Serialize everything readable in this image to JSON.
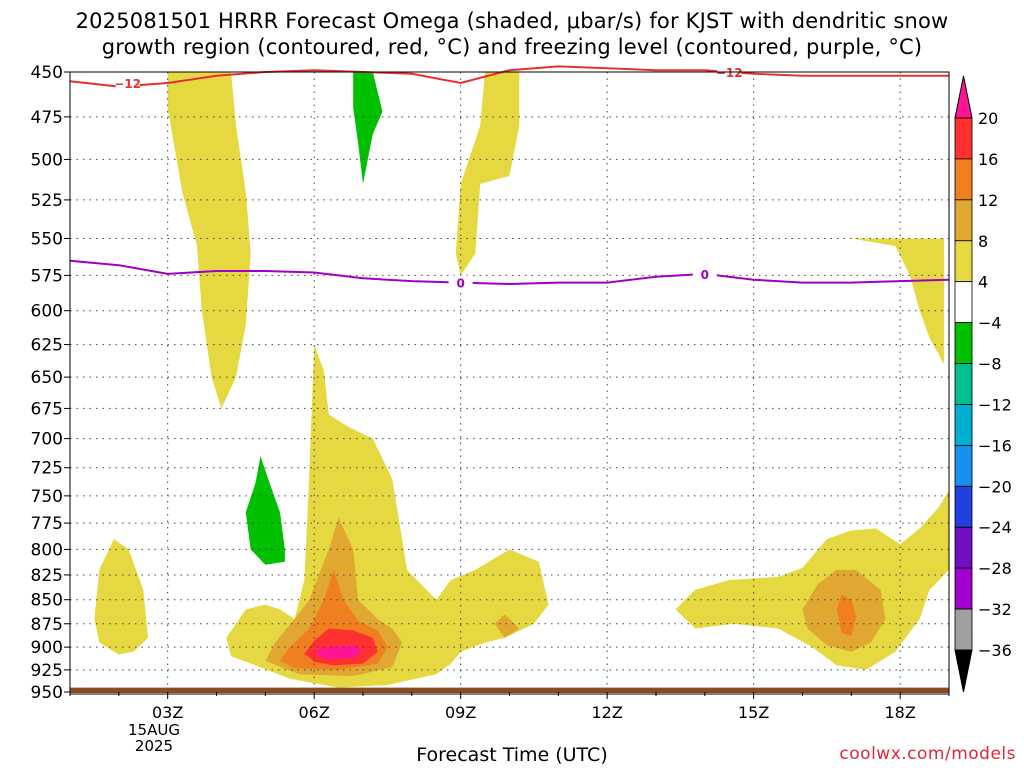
{
  "title_line1": "2025081501 HRRR Forecast Omega (shaded, μbar/s) for KJST with dendritic snow",
  "title_line2": "growth region (contoured, red, °C) and freezing level (contoured, purple, °C)",
  "credit": "coolwx.com/models",
  "chart_data": {
    "type": "heatmap",
    "xlabel": "Forecast Time (UTC)",
    "ylabel": "",
    "x_ticks": [
      "03Z",
      "06Z",
      "09Z",
      "12Z",
      "15Z",
      "18Z"
    ],
    "x_tick_hours": [
      3,
      6,
      9,
      12,
      15,
      18
    ],
    "date_label": [
      "15AUG",
      "2025"
    ],
    "xlim_hours": [
      1,
      19
    ],
    "y_ticks": [
      450,
      475,
      500,
      525,
      550,
      575,
      600,
      625,
      650,
      675,
      700,
      725,
      750,
      775,
      800,
      825,
      850,
      875,
      900,
      925,
      950
    ],
    "ylim_hpa": [
      450,
      950
    ],
    "y_scale": "log-pressure",
    "grid": true,
    "colorbar": {
      "ticks": [
        "20",
        "16",
        "12",
        "8",
        "4",
        "−4",
        "−8",
        "−12",
        "−16",
        "−20",
        "−24",
        "−28",
        "−32",
        "−36"
      ],
      "colors": [
        "#ff1493",
        "#ff3030",
        "#f07f20",
        "#e0a830",
        "#e6d840",
        "#ffffff",
        "#00c000",
        "#00c090",
        "#00b0d0",
        "#1890f0",
        "#2040e0",
        "#7010c0",
        "#a000d0",
        "#a0a0a0",
        "#000000"
      ]
    },
    "contours": [
      {
        "name": "dendritic snow growth region",
        "color": "#e83030",
        "label": "−12",
        "points": [
          [
            1,
            455
          ],
          [
            2,
            458
          ],
          [
            3,
            456
          ],
          [
            4,
            452
          ],
          [
            5,
            450
          ],
          [
            6,
            449
          ],
          [
            7,
            450
          ],
          [
            8,
            451
          ],
          [
            9,
            456
          ],
          [
            10,
            449
          ],
          [
            11,
            447
          ],
          [
            12,
            448
          ],
          [
            13,
            449
          ],
          [
            14,
            449
          ],
          [
            15,
            451
          ],
          [
            16,
            452
          ],
          [
            17,
            452
          ],
          [
            18,
            452
          ],
          [
            19,
            452
          ]
        ]
      },
      {
        "name": "freezing level",
        "color": "#a000c8",
        "label": "0",
        "points": [
          [
            1,
            565
          ],
          [
            2,
            568
          ],
          [
            3,
            574
          ],
          [
            4,
            572
          ],
          [
            5,
            572
          ],
          [
            6,
            573
          ],
          [
            7,
            577
          ],
          [
            8,
            579
          ],
          [
            9,
            580
          ],
          [
            10,
            581
          ],
          [
            11,
            580
          ],
          [
            12,
            580
          ],
          [
            13,
            576
          ],
          [
            14,
            574
          ],
          [
            15,
            578
          ],
          [
            16,
            580
          ],
          [
            17,
            580
          ],
          [
            18,
            579
          ],
          [
            19,
            578
          ]
        ]
      }
    ],
    "shaded_regions": [
      {
        "value_range": "4 to 8",
        "color": "#e6d840",
        "points": [
          [
            3,
            450
          ],
          [
            4.3,
            450
          ],
          [
            4.4,
            480
          ],
          [
            4.6,
            520
          ],
          [
            4.7,
            560
          ],
          [
            4.6,
            610
          ],
          [
            4.4,
            650
          ],
          [
            4.1,
            675
          ],
          [
            3.9,
            650
          ],
          [
            3.7,
            600
          ],
          [
            3.6,
            555
          ],
          [
            3.3,
            520
          ],
          [
            3,
            470
          ]
        ]
      },
      {
        "value_range": "4 to 8",
        "color": "#e6d840",
        "points": [
          [
            9.5,
            450
          ],
          [
            10.2,
            450
          ],
          [
            10.2,
            480
          ],
          [
            10.0,
            510
          ],
          [
            9.4,
            515
          ],
          [
            9.3,
            560
          ],
          [
            9.0,
            575
          ],
          [
            8.9,
            560
          ],
          [
            9.0,
            515
          ],
          [
            9.4,
            480
          ]
        ]
      },
      {
        "value_range": "4 to 8",
        "color": "#e6d840",
        "points": [
          [
            17.0,
            550
          ],
          [
            18.9,
            550
          ],
          [
            18.9,
            640
          ],
          [
            18.6,
            620
          ],
          [
            18.4,
            600
          ],
          [
            18.2,
            575
          ],
          [
            17.9,
            555
          ]
        ]
      },
      {
        "value_range": "4 to 8",
        "color": "#e6d840",
        "points": [
          [
            1.5,
            870
          ],
          [
            1.6,
            820
          ],
          [
            1.9,
            790
          ],
          [
            2.2,
            800
          ],
          [
            2.5,
            840
          ],
          [
            2.6,
            890
          ],
          [
            2.3,
            905
          ],
          [
            2.0,
            908
          ],
          [
            1.6,
            895
          ]
        ]
      },
      {
        "value_range": "4 to 8",
        "color": "#e6d840",
        "points": [
          [
            4.2,
            890
          ],
          [
            4.6,
            860
          ],
          [
            5.0,
            855
          ],
          [
            5.3,
            860
          ],
          [
            5.6,
            870
          ],
          [
            5.8,
            830
          ],
          [
            5.9,
            730
          ],
          [
            6.0,
            625
          ],
          [
            6.2,
            645
          ],
          [
            6.3,
            680
          ],
          [
            6.7,
            690
          ],
          [
            7.2,
            700
          ],
          [
            7.6,
            735
          ],
          [
            7.8,
            790
          ],
          [
            7.9,
            820
          ],
          [
            8.5,
            850
          ],
          [
            8.8,
            830
          ],
          [
            9.3,
            820
          ],
          [
            10.0,
            800
          ],
          [
            10.6,
            812
          ],
          [
            10.8,
            855
          ],
          [
            10.5,
            875
          ],
          [
            9.9,
            890
          ],
          [
            9.5,
            895
          ],
          [
            9.0,
            905
          ],
          [
            8.8,
            918
          ],
          [
            8.5,
            930
          ],
          [
            7.5,
            942
          ],
          [
            6.5,
            945
          ],
          [
            5.5,
            935
          ],
          [
            4.8,
            920
          ],
          [
            4.3,
            910
          ]
        ]
      },
      {
        "value_range": "4 to 8",
        "color": "#e6d840",
        "points": [
          [
            13.4,
            860
          ],
          [
            13.8,
            840
          ],
          [
            14.5,
            830
          ],
          [
            15.5,
            827
          ],
          [
            16.0,
            818
          ],
          [
            16.5,
            790
          ],
          [
            17.0,
            782
          ],
          [
            17.5,
            780
          ],
          [
            18.0,
            795
          ],
          [
            18.4,
            780
          ],
          [
            18.8,
            760
          ],
          [
            19.0,
            745
          ],
          [
            19.0,
            820
          ],
          [
            18.6,
            840
          ],
          [
            18.4,
            870
          ],
          [
            17.9,
            905
          ],
          [
            17.3,
            925
          ],
          [
            16.7,
            920
          ],
          [
            16.2,
            900
          ],
          [
            15.5,
            880
          ],
          [
            14.6,
            875
          ],
          [
            13.8,
            880
          ]
        ]
      },
      {
        "value_range": "8 to 12",
        "color": "#e0a830",
        "points": [
          [
            5.0,
            915
          ],
          [
            5.2,
            895
          ],
          [
            5.6,
            870
          ],
          [
            5.9,
            850
          ],
          [
            6.3,
            800
          ],
          [
            6.5,
            770
          ],
          [
            6.8,
            800
          ],
          [
            6.9,
            850
          ],
          [
            7.3,
            870
          ],
          [
            7.6,
            880
          ],
          [
            7.8,
            895
          ],
          [
            7.6,
            922
          ],
          [
            6.8,
            932
          ],
          [
            5.7,
            930
          ]
        ]
      },
      {
        "value_range": "8 to 12",
        "color": "#e0a830",
        "points": [
          [
            16.0,
            860
          ],
          [
            16.3,
            835
          ],
          [
            16.7,
            820
          ],
          [
            17.1,
            820
          ],
          [
            17.6,
            840
          ],
          [
            17.7,
            870
          ],
          [
            17.4,
            895
          ],
          [
            17.0,
            905
          ],
          [
            16.5,
            898
          ],
          [
            16.1,
            880
          ]
        ]
      },
      {
        "value_range": "8 to 12",
        "color": "#e0a830",
        "points": [
          [
            9.7,
            875
          ],
          [
            9.9,
            865
          ],
          [
            10.2,
            880
          ],
          [
            9.9,
            890
          ]
        ]
      },
      {
        "value_range": "12 to 16",
        "color": "#f07f20",
        "points": [
          [
            5.3,
            915
          ],
          [
            5.5,
            900
          ],
          [
            5.9,
            880
          ],
          [
            6.2,
            850
          ],
          [
            6.4,
            820
          ],
          [
            6.6,
            850
          ],
          [
            6.9,
            872
          ],
          [
            7.3,
            882
          ],
          [
            7.5,
            900
          ],
          [
            7.3,
            918
          ],
          [
            6.5,
            925
          ],
          [
            5.6,
            923
          ]
        ]
      },
      {
        "value_range": "12 to 16",
        "color": "#f07f20",
        "points": [
          [
            16.7,
            860
          ],
          [
            16.8,
            845
          ],
          [
            17.0,
            850
          ],
          [
            17.1,
            868
          ],
          [
            17.0,
            888
          ],
          [
            16.8,
            885
          ]
        ]
      },
      {
        "value_range": "16 to 20",
        "color": "#ff3030",
        "points": [
          [
            5.8,
            907
          ],
          [
            6.0,
            893
          ],
          [
            6.3,
            880
          ],
          [
            6.8,
            882
          ],
          [
            7.2,
            890
          ],
          [
            7.3,
            905
          ],
          [
            7.0,
            918
          ],
          [
            6.4,
            920
          ],
          [
            6.0,
            916
          ]
        ]
      },
      {
        "value_range": "> 20",
        "color": "#ff1493",
        "points": [
          [
            6.0,
            905
          ],
          [
            6.2,
            900
          ],
          [
            6.8,
            898
          ],
          [
            7.0,
            903
          ],
          [
            6.8,
            912
          ],
          [
            6.2,
            913
          ]
        ]
      },
      {
        "value_range": "−4 to −8",
        "color": "#00c000",
        "points": [
          [
            6.8,
            450
          ],
          [
            7.2,
            450
          ],
          [
            7.4,
            472
          ],
          [
            7.2,
            485
          ],
          [
            7.0,
            515
          ],
          [
            6.9,
            490
          ],
          [
            6.8,
            470
          ]
        ]
      },
      {
        "value_range": "−4 to −8",
        "color": "#00c000",
        "points": [
          [
            4.6,
            765
          ],
          [
            4.8,
            738
          ],
          [
            4.9,
            715
          ],
          [
            5.1,
            740
          ],
          [
            5.3,
            765
          ],
          [
            5.4,
            800
          ],
          [
            5.4,
            812
          ],
          [
            5.0,
            815
          ],
          [
            4.7,
            800
          ]
        ]
      }
    ],
    "ground": {
      "name": "surface",
      "color": "#8b4a22",
      "above_hpa": 945
    }
  }
}
